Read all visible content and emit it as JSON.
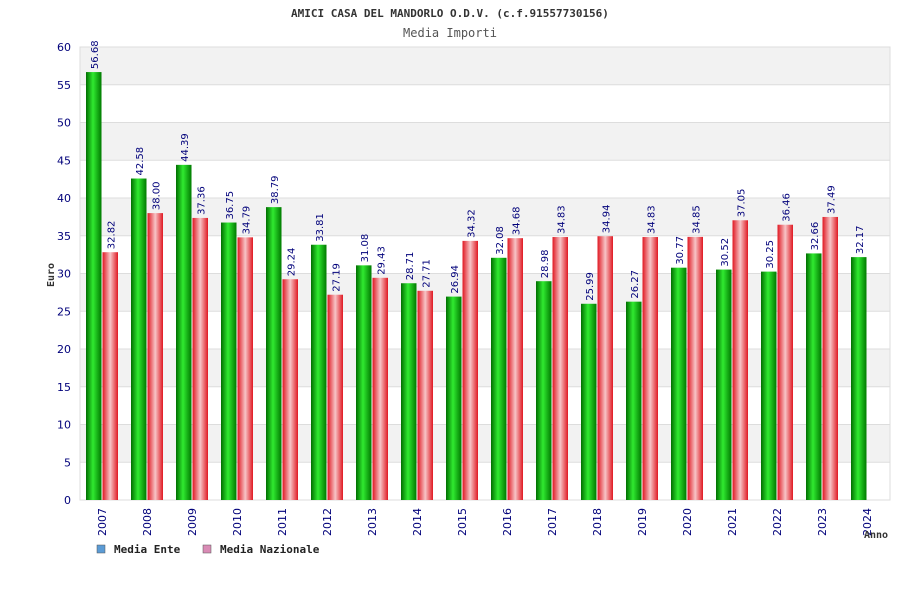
{
  "chart_data": {
    "type": "bar",
    "title": "AMICI CASA DEL MANDORLO O.D.V. (c.f.91557730156)",
    "subtitle": "Media Importi",
    "ylabel": "Euro",
    "xlabel": "Anno",
    "ylim": [
      0,
      60
    ],
    "yticks": [
      0,
      5,
      10,
      15,
      20,
      25,
      30,
      35,
      40,
      45,
      50,
      55,
      60
    ],
    "grid": true,
    "legend_position": "bottom-left",
    "categories": [
      "2007",
      "2008",
      "2009",
      "2010",
      "2011",
      "2012",
      "2013",
      "2014",
      "2015",
      "2016",
      "2017",
      "2018",
      "2019",
      "2020",
      "2021",
      "2022",
      "2023",
      "2024"
    ],
    "series": [
      {
        "name": "Media Ente",
        "color": "#00b000",
        "legend_color": "#5b9bd5",
        "values": [
          56.68,
          42.58,
          44.39,
          36.75,
          38.79,
          33.81,
          31.08,
          28.71,
          26.94,
          32.08,
          28.98,
          25.99,
          26.27,
          30.77,
          30.52,
          30.25,
          32.66,
          32.17
        ],
        "labels": [
          "56.68",
          "42.58",
          "44.39",
          "36.75",
          "38.79",
          "33.81",
          "31.08",
          "28.71",
          "26.94",
          "32.08",
          "28.98",
          "25.99",
          "26.27",
          "30.77",
          "30.52",
          "30.25",
          "32.66",
          "32.17"
        ]
      },
      {
        "name": "Media Nazionale",
        "color": "#e8202a",
        "legend_color": "#d98bb5",
        "values": [
          32.82,
          38.0,
          37.36,
          34.79,
          29.24,
          27.19,
          29.43,
          27.71,
          34.32,
          34.68,
          34.83,
          34.94,
          34.83,
          34.85,
          37.05,
          36.46,
          37.49,
          null
        ],
        "labels": [
          "32.82",
          "38.00",
          "37.36",
          "34.79",
          "29.24",
          "27.19",
          "29.43",
          "27.71",
          "34.32",
          "34.68",
          "34.83",
          "34.94",
          "34.83",
          "34.85",
          "37.05",
          "36.46",
          "37.49",
          null
        ]
      }
    ]
  }
}
